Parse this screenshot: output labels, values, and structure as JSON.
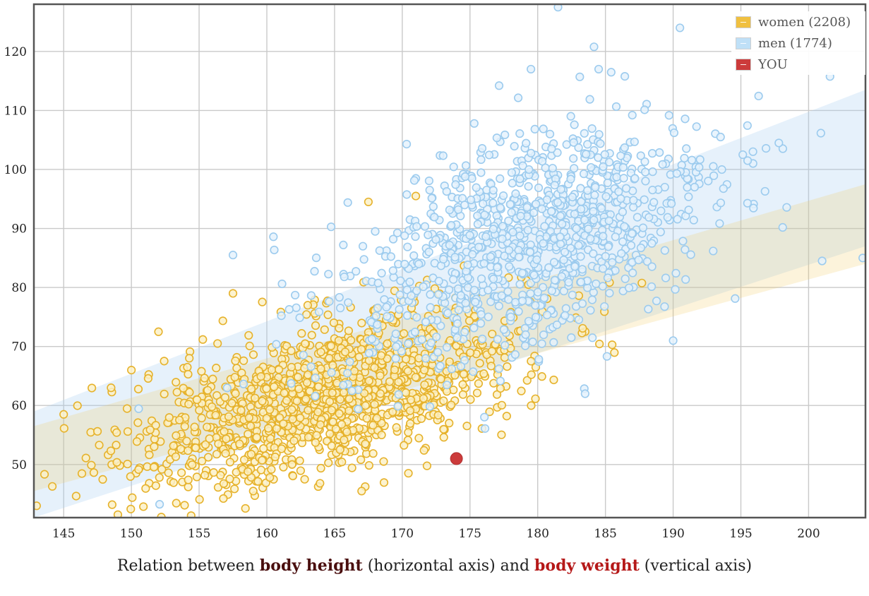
{
  "chart_data": {
    "type": "scatter",
    "xlim": [
      142.8,
      204.2
    ],
    "ylim": [
      41,
      128
    ],
    "x_ticks": [
      145,
      150,
      155,
      160,
      165,
      170,
      175,
      180,
      185,
      190,
      195,
      200
    ],
    "y_ticks": [
      50,
      60,
      70,
      80,
      90,
      100,
      110,
      120
    ],
    "grid": true,
    "legend_position": "top-right",
    "series": [
      {
        "name": "women (2208)",
        "color": "#f0c040",
        "count": 2208,
        "band": {
          "start": {
            "x": 142.8,
            "low": 45.5,
            "high": 56.5
          },
          "end": {
            "x": 204.2,
            "low": 84,
            "high": 97.5
          }
        },
        "outliers": [
          [
            143,
            43
          ],
          [
            145,
            58.5
          ],
          [
            148.5,
            63
          ],
          [
            150,
            66
          ],
          [
            149,
            41.5
          ],
          [
            157.5,
            79
          ],
          [
            171,
            95.5
          ],
          [
            167.5,
            94.5
          ],
          [
            152,
            72.5
          ],
          [
            167,
            45.5
          ]
        ]
      },
      {
        "name": "men (1774)",
        "color": "#a8d4f2",
        "count": 1774,
        "band": {
          "start": {
            "x": 142.8,
            "low": 41,
            "high": 59
          },
          "end": {
            "x": 204.2,
            "low": 87,
            "high": 113.5
          }
        },
        "outliers": [
          [
            181.5,
            127.5
          ],
          [
            190.5,
            124
          ],
          [
            179.5,
            117
          ],
          [
            184.5,
            117
          ],
          [
            201,
            84.5
          ],
          [
            204,
            85
          ],
          [
            193.5,
            105.5
          ],
          [
            195.5,
            101.5
          ],
          [
            157.5,
            85.5
          ],
          [
            190,
            71
          ],
          [
            183.5,
            62
          ]
        ]
      },
      {
        "name": "YOU",
        "color": "#cc3b3b",
        "points": [
          [
            174,
            51
          ]
        ]
      }
    ],
    "caption": {
      "before": "Relation between ",
      "x_quantity": "body height",
      "x_note": " (horizontal axis) and ",
      "y_quantity": "body weight",
      "y_note": " (vertical axis)"
    }
  }
}
